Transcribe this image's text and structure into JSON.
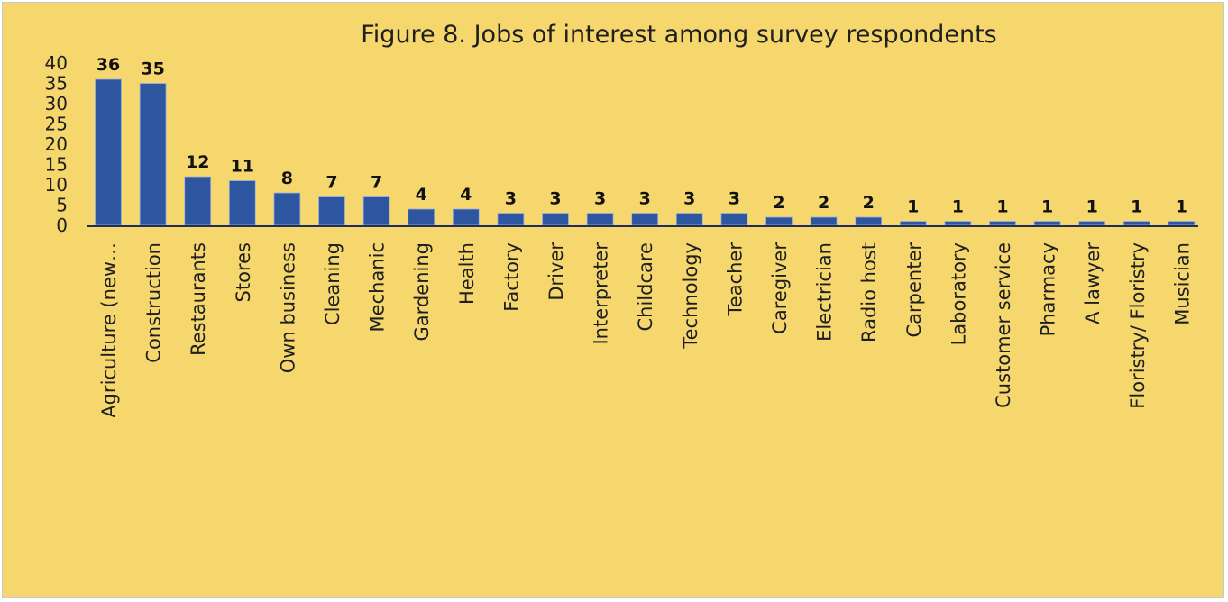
{
  "chart_data": {
    "type": "bar",
    "title": "Figure 8. Jobs of interest among survey respondents",
    "xlabel": "",
    "ylabel": "",
    "ylim": [
      0,
      40
    ],
    "yticks": [
      0,
      5,
      10,
      15,
      20,
      25,
      30,
      35,
      40
    ],
    "categories": [
      "Agriculture (new…",
      "Construction",
      "Restaurants",
      "Stores",
      "Own business",
      "Cleaning",
      "Mechanic",
      "Gardening",
      "Health",
      "Factory",
      "Driver",
      "Interpreter",
      "Childcare",
      "Technology",
      "Teacher",
      "Caregiver",
      "Electrician",
      "Radio host",
      "Carpenter",
      "Laboratory",
      "Customer service",
      "Pharmacy",
      "A lawyer",
      "Floristry/ Floristry",
      "Musician"
    ],
    "values": [
      36,
      35,
      12,
      11,
      8,
      7,
      7,
      4,
      4,
      3,
      3,
      3,
      3,
      3,
      3,
      2,
      2,
      2,
      1,
      1,
      1,
      1,
      1,
      1,
      1
    ],
    "data_labels": true,
    "grid": false,
    "legend": "none",
    "colors": {
      "background": "#f5d76e",
      "bar": "#2e56a0",
      "axis": "#1f2d5a",
      "text": "#1f1f1f"
    }
  }
}
